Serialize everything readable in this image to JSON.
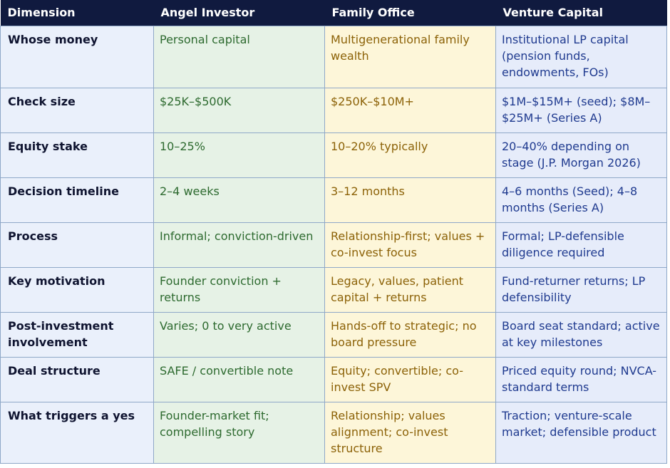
{
  "headers": [
    "Dimension",
    "Angel Investor",
    "Family Office",
    "Venture Capital"
  ],
  "rows": [
    [
      "Whose money",
      "Personal capital",
      "Multigenerational family wealth",
      "Institutional LP capital (pension funds, endowments, FOs)"
    ],
    [
      "Check size",
      "$25K–$500K",
      "$250K–$10M+",
      "$1M–$15M+ (seed); $8M–$25M+ (Series A)"
    ],
    [
      "Equity stake",
      "10–25%",
      "10–20% typically",
      "20–40% depending on stage (J.P. Morgan 2026)"
    ],
    [
      "Decision timeline",
      "2–4 weeks",
      "3–12 months",
      "4–6 months (Seed); 4–8 months (Series A)"
    ],
    [
      "Process",
      "Informal; conviction-driven",
      "Relationship-first; values + co-invest focus",
      "Formal; LP-defensible diligence required"
    ],
    [
      "Key motivation",
      "Founder conviction + returns",
      "Legacy, values, patient capital + returns",
      "Fund-returner returns; LP defensibility"
    ],
    [
      "Post-investment involvement",
      "Varies; 0 to very active",
      "Hands-off to strategic; no board pressure",
      "Board seat standard; active at key milestones"
    ],
    [
      "Deal structure",
      "SAFE / convertible note",
      "Equity; convertible; co-invest SPV",
      "Priced equity round; NVCA-standard terms"
    ],
    [
      "What triggers a yes",
      "Founder-market fit; compelling story",
      "Relationship; values alignment; co-invest structure",
      "Traction; venture-scale market; defensible product"
    ]
  ]
}
